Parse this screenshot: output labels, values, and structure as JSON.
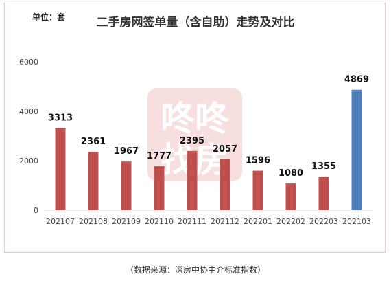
{
  "chart_data": {
    "type": "bar",
    "title": "二手房网签单量（含自助）走势及对比",
    "unit_label": "单位：套",
    "categories": [
      "202107",
      "202108",
      "202109",
      "202110",
      "202111",
      "202112",
      "202201",
      "202202",
      "202203",
      "202103"
    ],
    "values": [
      3313,
      2361,
      1967,
      1777,
      2395,
      2057,
      1596,
      1080,
      1355,
      4869
    ],
    "ylim": [
      0,
      6000
    ],
    "yticks": [
      0,
      2000,
      4000,
      6000
    ],
    "grid": false,
    "legend": "none",
    "colors": {
      "default_bar": "#c0504d",
      "highlight_bar": "#4f81bd",
      "highlight_index": 9
    }
  },
  "watermark": {
    "text_top": "咚咚",
    "text_bottom": "找房"
  },
  "source_note": "（数据来源：深房中协中介标准指数）"
}
